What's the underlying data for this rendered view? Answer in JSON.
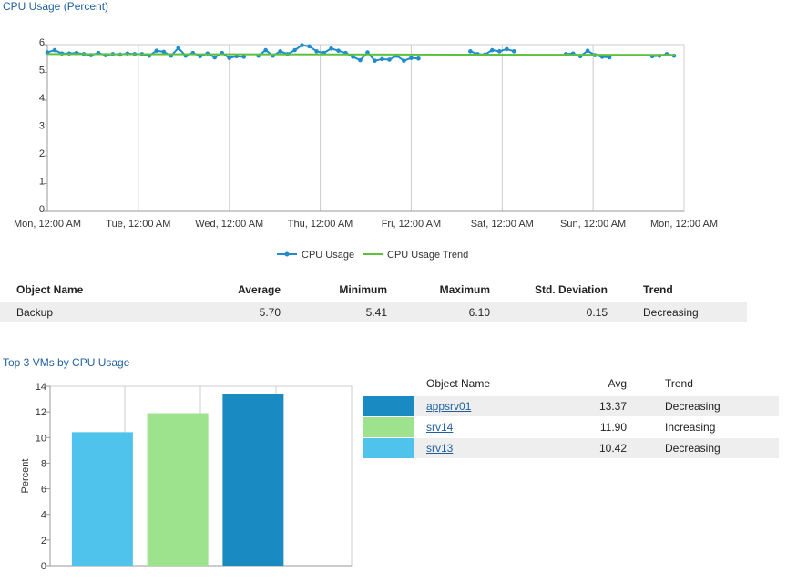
{
  "line_section": {
    "title": "CPU Usage (Percent)"
  },
  "bar_section": {
    "title": "Top 3 VMs by CPU Usage"
  },
  "stats_table": {
    "headers": [
      "Object Name",
      "Average",
      "Minimum",
      "Maximum",
      "Std. Deviation",
      "Trend"
    ],
    "rows": [
      [
        "Backup",
        "5.70",
        "5.41",
        "6.10",
        "0.15",
        "Decreasing"
      ]
    ]
  },
  "top_table": {
    "headers": [
      "Object Name",
      "Avg",
      "Trend"
    ],
    "rows": [
      {
        "name": "appsrv01",
        "avg": "13.37",
        "trend": "Decreasing",
        "color": "#1a8bc2"
      },
      {
        "name": "srv14",
        "avg": "11.90",
        "trend": "Increasing",
        "color": "#9de38d"
      },
      {
        "name": "srv13",
        "avg": "10.42",
        "trend": "Decreasing",
        "color": "#4fc3ec"
      }
    ]
  },
  "chart_data": [
    {
      "type": "line",
      "title": "CPU Usage (Percent)",
      "x_tick_labels": [
        "Mon, 12:00 AM",
        "Tue, 12:00 AM",
        "Wed, 12:00 AM",
        "Thu, 12:00 AM",
        "Fri, 12:00 AM",
        "Sat, 12:00 AM",
        "Sun, 12:00 AM",
        "Mon, 12:00 AM"
      ],
      "x_unit": "days",
      "xlim": [
        0,
        7
      ],
      "ylim": [
        0,
        6
      ],
      "y_ticks": [
        0,
        1,
        2,
        3,
        4,
        5,
        6
      ],
      "grid": true,
      "legend": "bottom",
      "series": [
        {
          "name": "CPU Usage",
          "color": "#1f8ccc",
          "segments": [
            [
              [
                0.0,
                5.72
              ],
              [
                0.08,
                5.8
              ],
              [
                0.16,
                5.68
              ],
              [
                0.24,
                5.68
              ],
              [
                0.32,
                5.7
              ],
              [
                0.4,
                5.66
              ],
              [
                0.48,
                5.62
              ],
              [
                0.56,
                5.7
              ],
              [
                0.64,
                5.62
              ],
              [
                0.72,
                5.66
              ],
              [
                0.8,
                5.64
              ],
              [
                0.88,
                5.68
              ],
              [
                0.96,
                5.66
              ],
              [
                1.04,
                5.66
              ],
              [
                1.12,
                5.6
              ],
              [
                1.2,
                5.78
              ],
              [
                1.28,
                5.74
              ],
              [
                1.36,
                5.6
              ],
              [
                1.44,
                5.88
              ],
              [
                1.52,
                5.6
              ],
              [
                1.6,
                5.7
              ],
              [
                1.68,
                5.58
              ],
              [
                1.76,
                5.68
              ],
              [
                1.84,
                5.54
              ],
              [
                1.92,
                5.7
              ],
              [
                2.0,
                5.52
              ],
              [
                2.08,
                5.58
              ],
              [
                2.16,
                5.56
              ]
            ],
            [
              [
                2.32,
                5.6
              ],
              [
                2.4,
                5.8
              ],
              [
                2.48,
                5.6
              ],
              [
                2.56,
                5.76
              ],
              [
                2.64,
                5.66
              ],
              [
                2.72,
                5.8
              ],
              [
                2.8,
                5.98
              ],
              [
                2.88,
                5.94
              ],
              [
                2.96,
                5.76
              ],
              [
                3.04,
                5.7
              ],
              [
                3.12,
                5.86
              ],
              [
                3.2,
                5.78
              ],
              [
                3.28,
                5.7
              ],
              [
                3.36,
                5.56
              ],
              [
                3.44,
                5.44
              ],
              [
                3.52,
                5.72
              ],
              [
                3.6,
                5.42
              ],
              [
                3.68,
                5.48
              ],
              [
                3.76,
                5.46
              ],
              [
                3.84,
                5.6
              ],
              [
                3.92,
                5.42
              ],
              [
                4.0,
                5.52
              ],
              [
                4.08,
                5.5
              ]
            ]
          ]
        },
        {
          "name": "CPU Usage",
          "color": "#1f8ccc",
          "segments": [
            [
              [
                4.65,
                5.76
              ],
              [
                4.73,
                5.66
              ],
              [
                4.81,
                5.64
              ],
              [
                4.89,
                5.8
              ],
              [
                4.97,
                5.76
              ],
              [
                5.05,
                5.84
              ],
              [
                5.13,
                5.76
              ]
            ],
            [
              [
                5.7,
                5.66
              ],
              [
                5.78,
                5.68
              ],
              [
                5.86,
                5.58
              ],
              [
                5.94,
                5.78
              ],
              [
                6.02,
                5.62
              ],
              [
                6.1,
                5.56
              ],
              [
                6.18,
                5.54
              ]
            ],
            [
              [
                6.65,
                5.58
              ],
              [
                6.73,
                5.6
              ],
              [
                6.81,
                5.66
              ],
              [
                6.89,
                5.6
              ]
            ]
          ]
        },
        {
          "name": "CPU Usage Trend",
          "color": "#5cc13c",
          "points": [
            [
              0.0,
              5.66
            ],
            [
              6.9,
              5.63
            ]
          ]
        }
      ]
    },
    {
      "type": "bar",
      "title": "Top 3 VMs by CPU Usage",
      "categories": [
        "srv13",
        "srv14",
        "appsrv01"
      ],
      "values": [
        10.42,
        11.9,
        13.37
      ],
      "colors": [
        "#4fc3ec",
        "#9de38d",
        "#1a8bc2"
      ],
      "ylabel": "Percent",
      "ylim": [
        0,
        14
      ],
      "y_ticks": [
        0,
        2,
        4,
        6,
        8,
        10,
        12,
        14
      ],
      "grid": true
    }
  ]
}
